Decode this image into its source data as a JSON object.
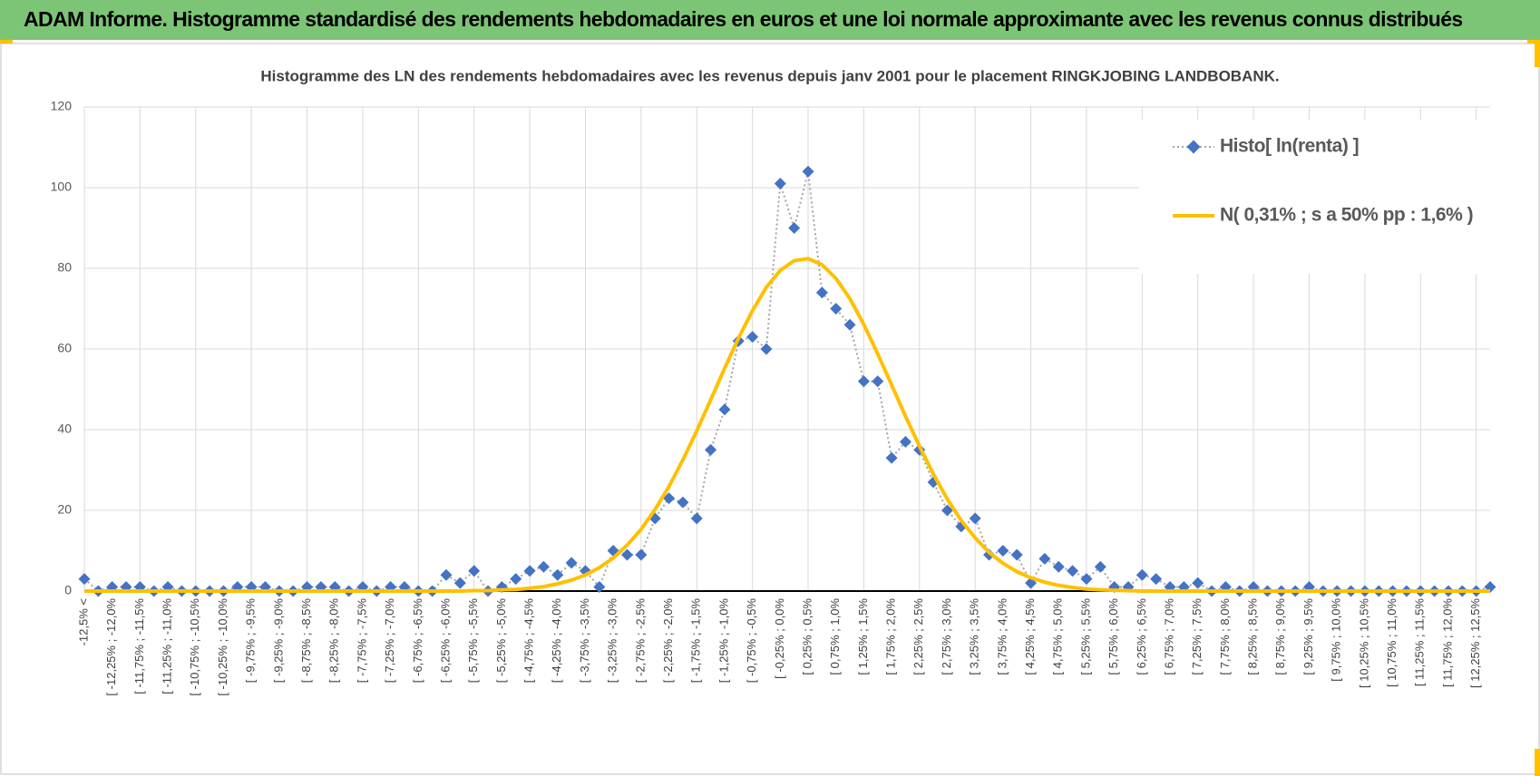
{
  "header": {
    "title": "ADAM Informe. Histogramme standardisé des rendements hebdomadaires en euros et une loi normale approximante avec les revenus connus distribués"
  },
  "chart_data": {
    "type": "line",
    "title": "Histogramme  des LN des rendements hebdomadaires avec les revenus depuis janv 2001 pour le placement RINGKJOBING  LANDBOBANK.",
    "categories": [
      "-12,5% <",
      null,
      "[ -12,25% ; -12,0%",
      null,
      "[ -11,75% ; -11,5%",
      null,
      "[ -11,25% ; -11,0%",
      null,
      "[ -10,75% ; -10,5%",
      null,
      "[ -10,25% ; -10,0%",
      null,
      "[ -9,75% ; -9,5%",
      null,
      "[ -9,25% ; -9,0%",
      null,
      "[ -8,75% ; -8,5%",
      null,
      "[ -8,25% ; -8,0%",
      null,
      "[ -7,75% ; -7,5%",
      null,
      "[ -7,25% ; -7,0%",
      null,
      "[ -6,75% ; -6,5%",
      null,
      "[ -6,25% ; -6,0%",
      null,
      "[ -5,75% ; -5,5%",
      null,
      "[ -5,25% ; -5,0%",
      null,
      "[ -4,75% ; -4,5%",
      null,
      "[ -4,25% ; -4,0%",
      null,
      "[ -3,75% ; -3,5%",
      null,
      "[ -3,25% ; -3,0%",
      null,
      "[ -2,75% ; -2,5%",
      null,
      "[ -2,25% ; -2,0%",
      null,
      "[ -1,75% ; -1,5%",
      null,
      "[ -1,25% ; -1,0%",
      null,
      "[ -0,75% ; -0,5%",
      null,
      "[ -0,25% ; 0,0%",
      null,
      "[ 0,25% ; 0,5%",
      null,
      "[ 0,75% ; 1,0%",
      null,
      "[ 1,25% ; 1,5%",
      null,
      "[ 1,75% ; 2,0%",
      null,
      "[ 2,25% ; 2,5%",
      null,
      "[ 2,75% ; 3,0%",
      null,
      "[ 3,25% ; 3,5%",
      null,
      "[ 3,75% ; 4,0%",
      null,
      "[ 4,25% ; 4,5%",
      null,
      "[ 4,75% ; 5,0%",
      null,
      "[ 5,25% ; 5,5%",
      null,
      "[ 5,75% ; 6,0%",
      null,
      "[ 6,25% ; 6,5%",
      null,
      "[ 6,75% ; 7,0%",
      null,
      "[ 7,25% ; 7,5%",
      null,
      "[ 7,75% ; 8,0%",
      null,
      "[ 8,25% ; 8,5%",
      null,
      "[ 8,75% ; 9,0%",
      null,
      "[ 9,25% ; 9,5%",
      null,
      "[ 9,75% ; 10,0%",
      null,
      "[ 10,25% ; 10,5%",
      null,
      "[ 10,75% ; 11,0%",
      null,
      "[ 11,25% ; 11,5%",
      null,
      "[ 11,75% ; 12,0%",
      null,
      "[ 12,25% ; 12,5%",
      null
    ],
    "series": [
      {
        "name": "Histo[ ln(renta) ]",
        "color": "#4472c4",
        "line_color": "#a5a5a5",
        "line_style": "dotted",
        "marker": "diamond",
        "values": [
          3,
          0,
          1,
          1,
          1,
          0,
          1,
          0,
          0,
          0,
          0,
          1,
          1,
          1,
          0,
          0,
          1,
          1,
          1,
          0,
          1,
          0,
          1,
          1,
          0,
          0,
          4,
          2,
          5,
          0,
          1,
          3,
          5,
          6,
          4,
          7,
          5,
          1,
          10,
          9,
          9,
          18,
          23,
          22,
          18,
          35,
          45,
          62,
          63,
          60,
          101,
          90,
          104,
          74,
          70,
          66,
          52,
          52,
          33,
          37,
          35,
          27,
          20,
          16,
          18,
          9,
          10,
          9,
          2,
          8,
          6,
          5,
          3,
          6,
          1,
          1,
          4,
          3,
          1,
          1,
          2,
          0,
          1,
          0,
          1,
          0,
          0,
          0,
          1,
          0,
          0,
          0,
          0,
          0,
          0,
          0,
          0,
          0,
          0,
          0,
          0,
          1
        ]
      },
      {
        "name": "N( 0,31% ; s a 50% pp : 1,6% )",
        "color": "#ffc000",
        "line_style": "solid",
        "marker": "none",
        "values": [
          0,
          0,
          0,
          0,
          0,
          0,
          0,
          0,
          0,
          0,
          0,
          0,
          0,
          0,
          0,
          0,
          0,
          0,
          0,
          0,
          0,
          0,
          0,
          0,
          0,
          0,
          0,
          0,
          0.1,
          0.1,
          0.3,
          0.4,
          0.7,
          1.1,
          1.8,
          2.7,
          4.0,
          5.8,
          8.2,
          11.4,
          15.3,
          20.2,
          25.9,
          32.5,
          39.7,
          47.4,
          55.2,
          62.7,
          69.5,
          75.3,
          79.5,
          81.9,
          82.4,
          80.9,
          77.5,
          72.5,
          66.1,
          58.8,
          51.1,
          43.3,
          35.9,
          29.0,
          22.8,
          17.5,
          13.2,
          9.6,
          6.9,
          4.8,
          3.3,
          2.2,
          1.4,
          0.9,
          0.5,
          0.3,
          0.2,
          0.1,
          0,
          0,
          0,
          0,
          0,
          0,
          0,
          0,
          0,
          0,
          0,
          0,
          0,
          0,
          0,
          0,
          0,
          0,
          0,
          0,
          0,
          0,
          0,
          0,
          0,
          0
        ]
      }
    ],
    "ylim": [
      0,
      120
    ],
    "yticks": [
      0,
      20,
      40,
      60,
      80,
      100,
      120
    ],
    "grid": true,
    "legend": "upper right"
  }
}
